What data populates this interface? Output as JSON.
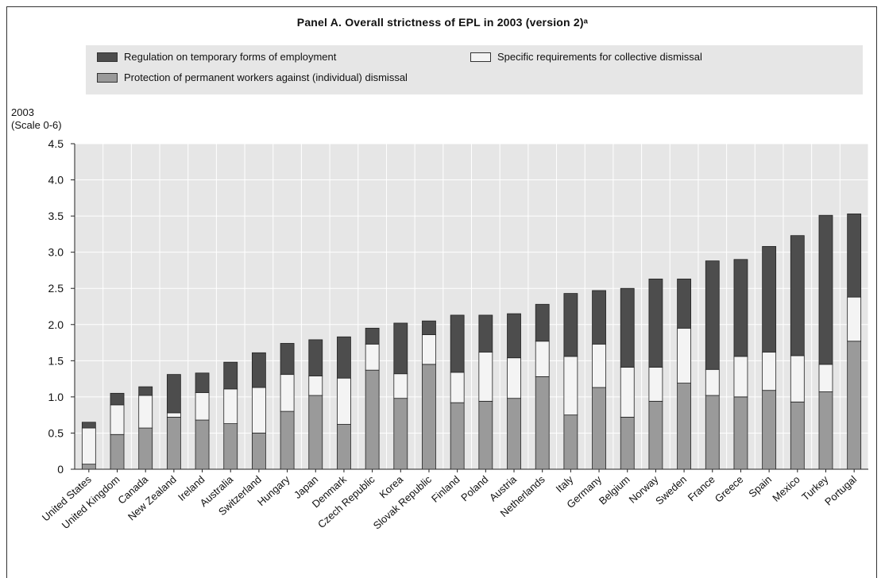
{
  "panel_title": "Panel A. Overall strictness of EPL in 2003 (version 2)ᵃ",
  "legend": {
    "items": [
      {
        "label": "Regulation on temporary forms of employment",
        "color": "#4d4d4d"
      },
      {
        "label": "Specific requirements for collective dismissal",
        "color": "#f4f4f4"
      },
      {
        "label": "Protection of permanent workers against (individual) dismissal",
        "color": "#9a9a9a"
      }
    ]
  },
  "y_axis_title": [
    "2003",
    "(Scale 0-6)"
  ],
  "chart_data": {
    "type": "bar",
    "stacked": true,
    "title": "Panel A. Overall strictness of EPL in 2003 (version 2)ᵃ",
    "ylabel": "2003 (Scale 0-6)",
    "ylim": [
      0,
      4.5
    ],
    "yticks": [
      "0",
      "0.5",
      "1.0",
      "1.5",
      "2.0",
      "2.5",
      "3.0",
      "3.5",
      "4.0",
      "4.5"
    ],
    "grid": true,
    "legend_position": "top",
    "categories": [
      "United States",
      "United Kingdom",
      "Canada",
      "New Zealand",
      "Ireland",
      "Australia",
      "Switzerland",
      "Hungary",
      "Japan",
      "Denmark",
      "Czech Republic",
      "Korea",
      "Slovak Republic",
      "Finland",
      "Poland",
      "Austria",
      "Netherlands",
      "Italy",
      "Germany",
      "Belgium",
      "Norway",
      "Sweden",
      "France",
      "Greece",
      "Spain",
      "Mexico",
      "Turkey",
      "Portugal"
    ],
    "series": [
      {
        "name": "Protection of permanent workers against (individual) dismissal",
        "color": "#9a9a9a",
        "values": [
          0.07,
          0.48,
          0.57,
          0.72,
          0.68,
          0.63,
          0.5,
          0.8,
          1.02,
          0.62,
          1.37,
          0.98,
          1.45,
          0.92,
          0.94,
          0.98,
          1.28,
          0.75,
          1.13,
          0.72,
          0.94,
          1.19,
          1.02,
          1.0,
          1.09,
          0.93,
          1.07,
          1.77
        ]
      },
      {
        "name": "Specific requirements for collective dismissal",
        "color": "#f4f4f4",
        "values": [
          0.5,
          0.41,
          0.45,
          0.06,
          0.38,
          0.48,
          0.63,
          0.51,
          0.27,
          0.64,
          0.36,
          0.34,
          0.41,
          0.42,
          0.68,
          0.56,
          0.49,
          0.81,
          0.6,
          0.69,
          0.47,
          0.76,
          0.36,
          0.56,
          0.53,
          0.64,
          0.38,
          0.61
        ]
      },
      {
        "name": "Regulation on temporary forms of employment",
        "color": "#4d4d4d",
        "values": [
          0.08,
          0.16,
          0.12,
          0.53,
          0.27,
          0.37,
          0.48,
          0.43,
          0.5,
          0.57,
          0.22,
          0.7,
          0.19,
          0.79,
          0.51,
          0.61,
          0.51,
          0.87,
          0.74,
          1.09,
          1.22,
          0.68,
          1.5,
          1.34,
          1.46,
          1.66,
          2.06,
          1.15
        ]
      }
    ]
  }
}
